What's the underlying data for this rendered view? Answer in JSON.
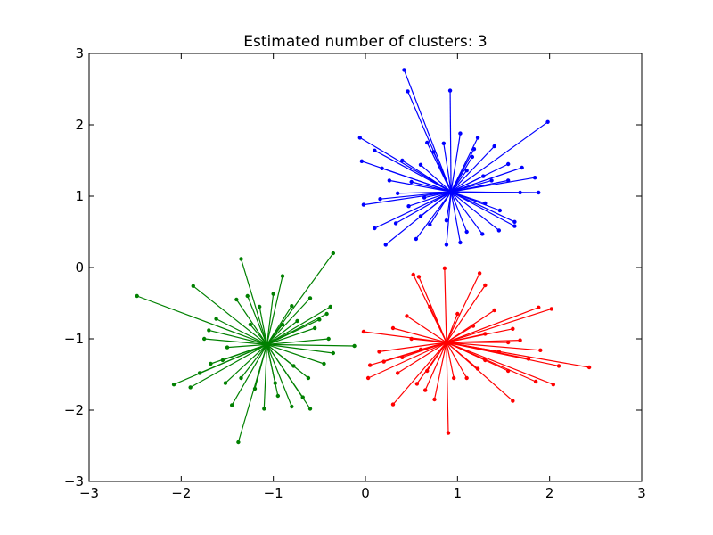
{
  "chart_data": {
    "type": "scatter",
    "title": "Estimated number of clusters: 3",
    "xlabel": "",
    "ylabel": "",
    "xlim": [
      -3,
      3
    ],
    "ylim": [
      -3,
      3
    ],
    "xticks": [
      -3,
      -2,
      -1,
      0,
      1,
      2,
      3
    ],
    "yticks": [
      -3,
      -2,
      -1,
      0,
      1,
      2,
      3
    ],
    "grid": false,
    "legend": null,
    "lines_from_center_to_points": true,
    "series": [
      {
        "color": "#0000ff",
        "center": [
          0.93,
          1.06
        ],
        "points": [
          [
            0.42,
            2.77
          ],
          [
            0.46,
            2.47
          ],
          [
            0.92,
            2.48
          ],
          [
            1.98,
            2.04
          ],
          [
            -0.06,
            1.82
          ],
          [
            0.1,
            1.64
          ],
          [
            -0.04,
            1.49
          ],
          [
            0.18,
            1.39
          ],
          [
            1.84,
            1.26
          ],
          [
            1.88,
            1.05
          ],
          [
            -0.02,
            0.88
          ],
          [
            0.1,
            0.55
          ],
          [
            0.22,
            0.32
          ],
          [
            1.62,
            0.64
          ],
          [
            1.16,
            1.55
          ],
          [
            0.5,
            1.2
          ],
          [
            0.7,
            0.6
          ],
          [
            1.3,
            0.9
          ],
          [
            0.6,
            0.72
          ],
          [
            1.4,
            1.7
          ],
          [
            0.74,
            1.62
          ],
          [
            1.1,
            1.36
          ],
          [
            0.35,
            1.04
          ],
          [
            1.68,
            1.05
          ],
          [
            0.55,
            0.4
          ],
          [
            0.88,
            0.32
          ],
          [
            1.03,
            0.35
          ],
          [
            1.27,
            0.47
          ],
          [
            1.45,
            0.52
          ],
          [
            1.55,
            1.22
          ],
          [
            1.22,
            1.82
          ],
          [
            1.03,
            1.88
          ],
          [
            0.67,
            1.75
          ],
          [
            0.6,
            1.44
          ],
          [
            0.26,
            1.22
          ],
          [
            0.16,
            0.96
          ],
          [
            0.47,
            0.86
          ],
          [
            0.64,
            0.98
          ],
          [
            1.46,
            0.8
          ],
          [
            1.62,
            0.58
          ],
          [
            1.55,
            1.45
          ],
          [
            1.37,
            1.22
          ],
          [
            0.85,
            1.74
          ],
          [
            1.18,
            1.66
          ],
          [
            0.88,
            0.66
          ],
          [
            1.1,
            0.5
          ],
          [
            0.33,
            0.62
          ],
          [
            0.4,
            1.5
          ],
          [
            1.7,
            1.4
          ],
          [
            1.28,
            1.28
          ]
        ]
      },
      {
        "color": "#ff0000",
        "center": [
          0.88,
          -1.05
        ],
        "points": [
          [
            0.52,
            -0.1
          ],
          [
            0.58,
            -0.13
          ],
          [
            0.86,
            -0.01
          ],
          [
            1.24,
            -0.08
          ],
          [
            1.3,
            -0.25
          ],
          [
            -0.02,
            -0.9
          ],
          [
            0.05,
            -1.37
          ],
          [
            0.03,
            -1.55
          ],
          [
            0.2,
            -1.32
          ],
          [
            0.3,
            -1.92
          ],
          [
            0.9,
            -2.32
          ],
          [
            1.1,
            -1.55
          ],
          [
            1.6,
            -1.87
          ],
          [
            1.85,
            -1.6
          ],
          [
            2.04,
            -1.64
          ],
          [
            2.43,
            -1.4
          ],
          [
            2.1,
            -1.38
          ],
          [
            1.9,
            -1.16
          ],
          [
            1.88,
            -0.56
          ],
          [
            2.02,
            -0.58
          ],
          [
            1.6,
            -0.86
          ],
          [
            1.4,
            -0.6
          ],
          [
            1.3,
            -1.3
          ],
          [
            0.67,
            -1.45
          ],
          [
            0.56,
            -1.63
          ],
          [
            0.4,
            -1.26
          ],
          [
            0.3,
            -0.85
          ],
          [
            0.45,
            -0.68
          ],
          [
            0.7,
            -0.55
          ],
          [
            1.0,
            -0.65
          ],
          [
            1.45,
            -1.18
          ],
          [
            1.55,
            -1.05
          ],
          [
            1.22,
            -1.42
          ],
          [
            0.96,
            -1.55
          ],
          [
            0.75,
            -1.85
          ],
          [
            0.5,
            -1.0
          ],
          [
            0.6,
            -1.15
          ],
          [
            1.3,
            -0.93
          ],
          [
            1.68,
            -1.02
          ],
          [
            1.77,
            -1.28
          ],
          [
            0.15,
            -1.18
          ],
          [
            0.35,
            -1.48
          ],
          [
            0.65,
            -1.72
          ],
          [
            1.55,
            -1.45
          ],
          [
            1.17,
            -0.82
          ]
        ]
      },
      {
        "color": "#008000",
        "center": [
          -1.07,
          -1.08
        ],
        "points": [
          [
            -2.48,
            -0.4
          ],
          [
            -2.08,
            -1.64
          ],
          [
            -1.9,
            -1.68
          ],
          [
            -1.38,
            -2.45
          ],
          [
            -1.35,
            0.12
          ],
          [
            -0.9,
            -0.12
          ],
          [
            -0.35,
            0.2
          ],
          [
            -0.12,
            -1.1
          ],
          [
            -0.6,
            -1.98
          ],
          [
            -0.8,
            -1.95
          ],
          [
            -1.45,
            -1.93
          ],
          [
            -1.8,
            -1.48
          ],
          [
            -1.87,
            -0.26
          ],
          [
            -1.7,
            -0.88
          ],
          [
            -1.75,
            -1.0
          ],
          [
            -0.95,
            -1.8
          ],
          [
            -0.62,
            -1.55
          ],
          [
            -0.45,
            -1.35
          ],
          [
            -0.4,
            -1.0
          ],
          [
            -0.42,
            -0.65
          ],
          [
            -0.6,
            -0.43
          ],
          [
            -0.8,
            -0.54
          ],
          [
            -1.15,
            -0.55
          ],
          [
            -1.4,
            -0.45
          ],
          [
            -1.62,
            -0.72
          ],
          [
            -1.55,
            -1.3
          ],
          [
            -1.35,
            -1.55
          ],
          [
            -1.2,
            -1.7
          ],
          [
            -0.98,
            -1.62
          ],
          [
            -0.78,
            -1.38
          ],
          [
            -0.9,
            -0.8
          ],
          [
            -1.25,
            -0.8
          ],
          [
            -1.5,
            -1.12
          ],
          [
            -0.55,
            -0.85
          ],
          [
            -0.35,
            -1.2
          ],
          [
            -1.68,
            -1.35
          ],
          [
            -1.28,
            -0.4
          ],
          [
            -0.74,
            -0.75
          ],
          [
            -0.5,
            -0.73
          ],
          [
            -1.0,
            -0.37
          ],
          [
            -0.68,
            -1.82
          ],
          [
            -1.1,
            -1.98
          ],
          [
            -1.52,
            -1.62
          ],
          [
            -0.38,
            -0.55
          ]
        ]
      }
    ]
  }
}
